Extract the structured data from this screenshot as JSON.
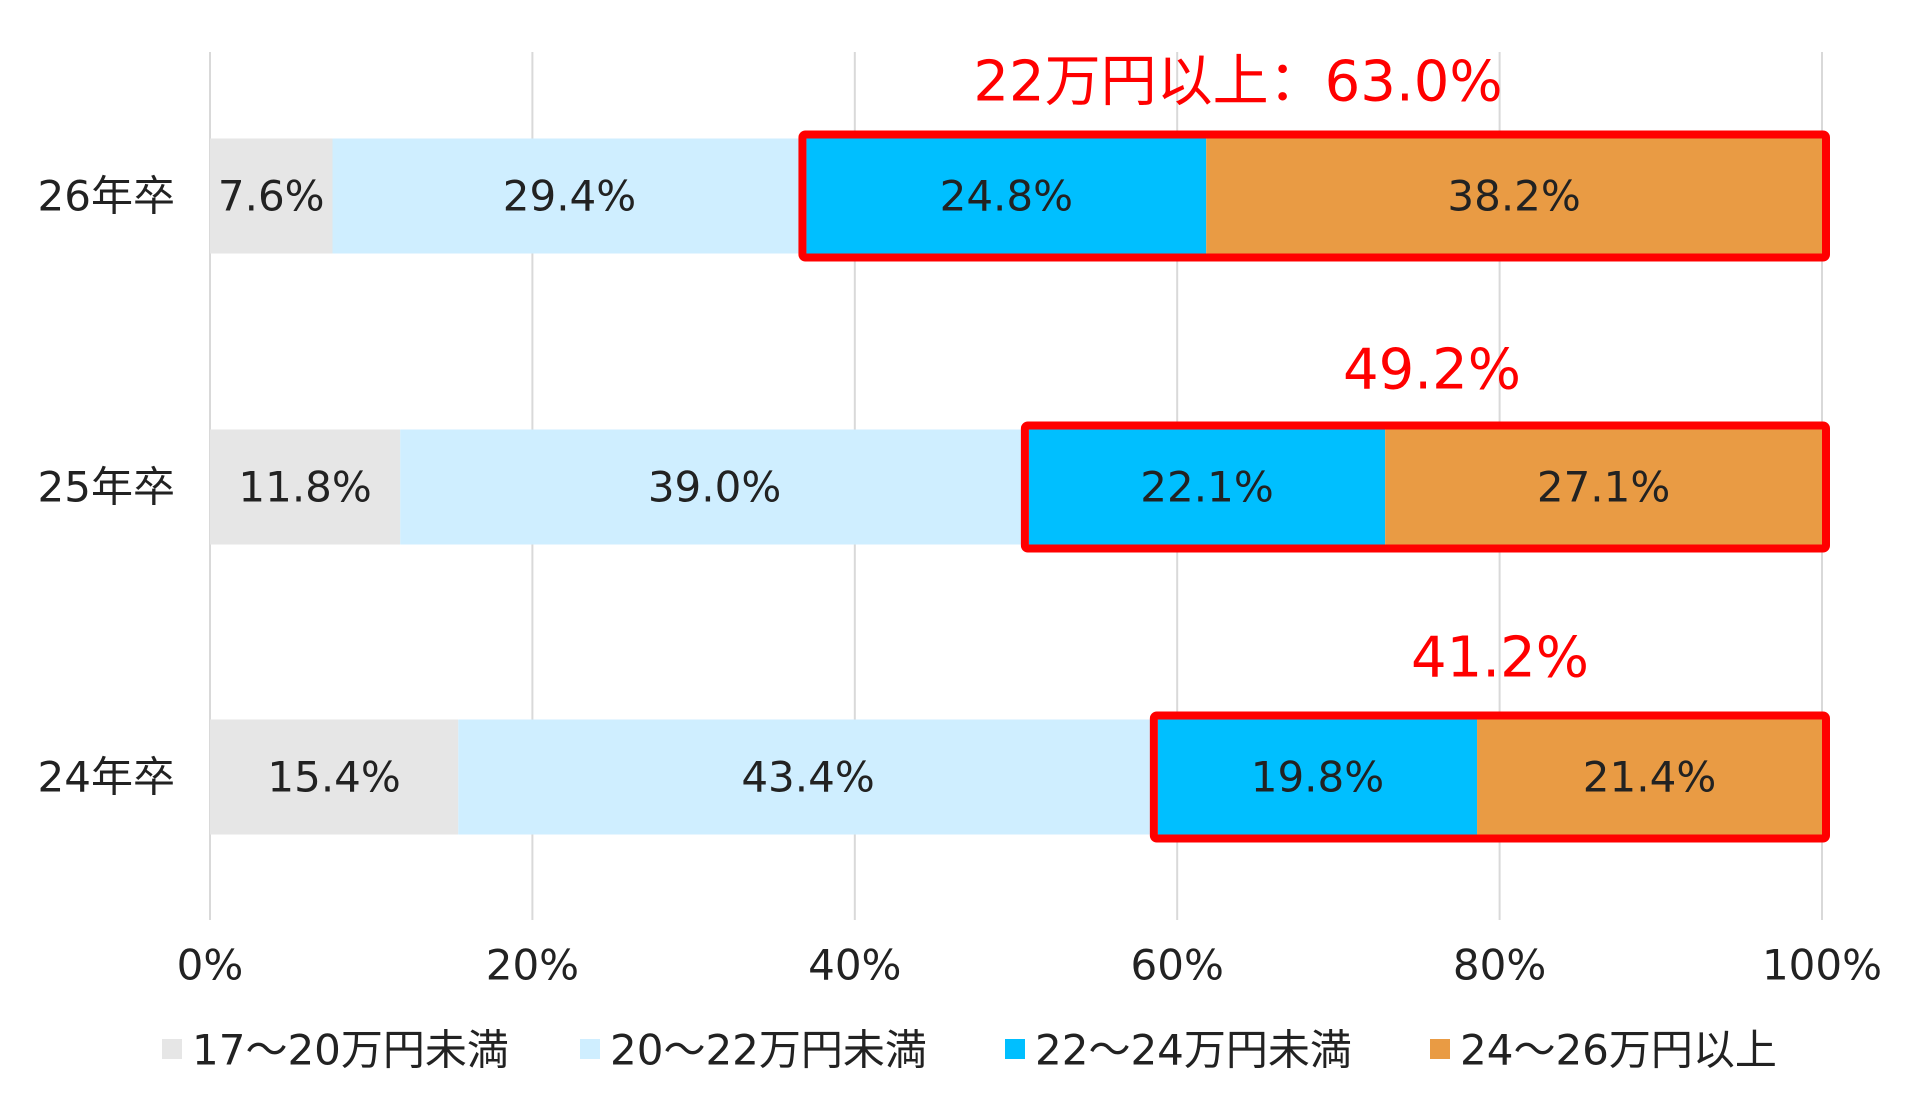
{
  "chart_data": {
    "type": "bar",
    "orientation": "horizontal",
    "stacked": true,
    "percent_scale": true,
    "categories": [
      "26年卒",
      "25年卒",
      "24年卒"
    ],
    "series": [
      {
        "name": "17～20万円未満",
        "color": "#e6e6e6",
        "values": [
          7.6,
          11.8,
          15.4
        ],
        "labels": [
          "7.6%",
          "11.8%",
          "15.4%"
        ]
      },
      {
        "name": "20～22万円未満",
        "color": "#cfeeff",
        "values": [
          29.4,
          39.0,
          43.4
        ],
        "labels": [
          "29.4%",
          "39.0%",
          "43.4%"
        ]
      },
      {
        "name": "22～24万円未満",
        "color": "#00bfff",
        "values": [
          24.8,
          22.1,
          19.8
        ],
        "labels": [
          "24.8%",
          "22.1%",
          "19.8%"
        ]
      },
      {
        "name": "24～26万円以上",
        "color": "#e99b44",
        "values": [
          38.2,
          27.1,
          21.4
        ],
        "labels": [
          "38.2%",
          "27.1%",
          "21.4%"
        ]
      }
    ],
    "x_ticks": [
      "0%",
      "20%",
      "40%",
      "60%",
      "80%",
      "100%"
    ],
    "xlim": [
      0,
      100
    ],
    "grid": true,
    "legend_position": "bottom",
    "highlight": {
      "series": [
        "22～24万円未満",
        "24～26万円以上"
      ],
      "color": "#ff0000",
      "annotations": [
        "22万円以上：63.0%",
        "49.2%",
        "41.2%"
      ]
    }
  }
}
